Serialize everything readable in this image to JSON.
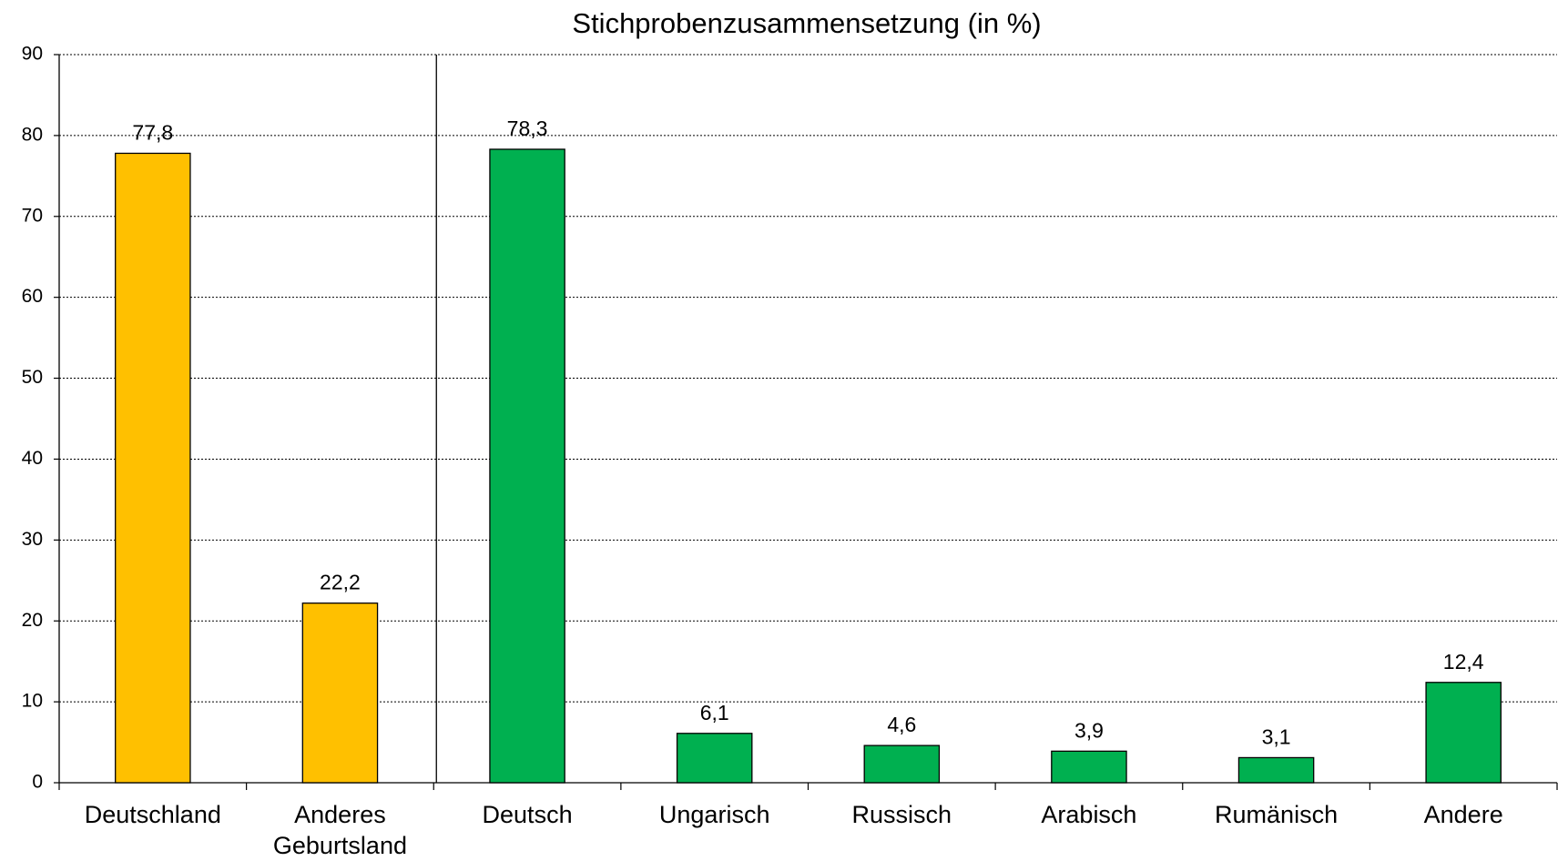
{
  "chart_data": {
    "type": "bar",
    "title": "Stichprobenzusammensetzung (in %)",
    "categories": [
      "Deutschland",
      "Anderes Geburtsland",
      "Deutsch",
      "Ungarisch",
      "Russisch",
      "Arabisch",
      "Rumänisch",
      "Andere"
    ],
    "values": [
      77.8,
      22.2,
      78.3,
      6.1,
      4.6,
      3.9,
      3.1,
      12.4
    ],
    "value_labels": [
      "77,8",
      "22,2",
      "78,3",
      "6,1",
      "4,6",
      "3,9",
      "3,1",
      "12,4"
    ],
    "colors": [
      "#FFC000",
      "#FFC000",
      "#00B050",
      "#00B050",
      "#00B050",
      "#00B050",
      "#00B050",
      "#00B050"
    ],
    "ylim": [
      0,
      90
    ],
    "yticks": [
      0,
      10,
      20,
      30,
      40,
      50,
      60,
      70,
      80,
      90
    ],
    "grid": true
  }
}
